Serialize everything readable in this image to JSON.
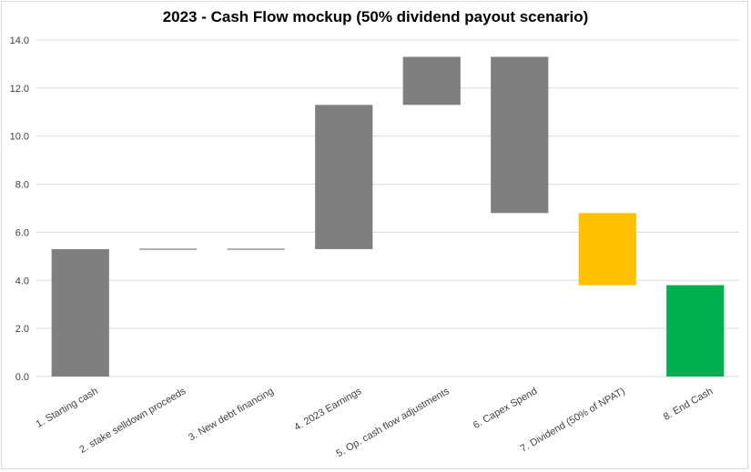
{
  "chart_data": {
    "type": "bar",
    "subtype": "waterfall",
    "title": "2023 - Cash Flow mockup (50% dividend payout scenario)",
    "xlabel": "",
    "ylabel": "",
    "ylim": [
      0,
      14
    ],
    "grid": true,
    "legend": "none",
    "yticks": [
      "0.0",
      "2.0",
      "4.0",
      "6.0",
      "8.0",
      "10.0",
      "12.0",
      "14.0"
    ],
    "categories": [
      "1. Starting cash",
      "2. stake selldown proceeds",
      "3. New debt financing",
      "4. 2023 Earnings",
      "5. Op. cash flow adjustments",
      "6. Capex Spend",
      "7. Dividend (50% of NPAT)",
      "8. End Cash"
    ],
    "bars": [
      {
        "low": 0.0,
        "high": 5.3
      },
      {
        "low": 5.3,
        "high": 5.3
      },
      {
        "low": 5.3,
        "high": 5.3
      },
      {
        "low": 5.3,
        "high": 11.3
      },
      {
        "low": 11.3,
        "high": 13.3
      },
      {
        "low": 6.8,
        "high": 13.3
      },
      {
        "low": 3.8,
        "high": 6.8
      },
      {
        "low": 0.0,
        "high": 3.8
      }
    ],
    "colors": [
      "#7f7f7f",
      "#7f7f7f",
      "#7f7f7f",
      "#7f7f7f",
      "#7f7f7f",
      "#7f7f7f",
      "#ffc000",
      "#00b050"
    ],
    "gridline_color": "#d9d9d9"
  }
}
